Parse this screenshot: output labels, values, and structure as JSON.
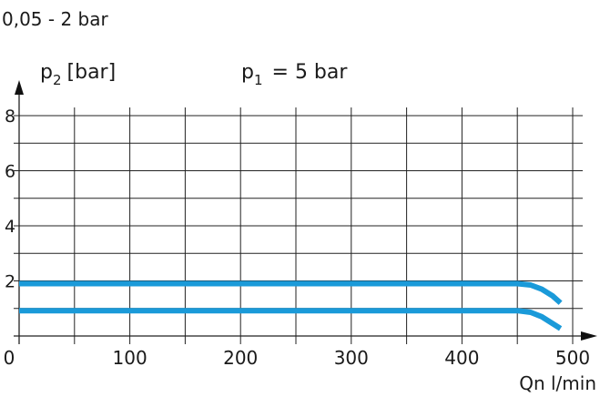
{
  "chart_data": {
    "type": "line",
    "title": "0,05 - 2 bar",
    "subtitle": "p1 = 5 bar",
    "subtitle_parts": {
      "p": "p",
      "sub": "1",
      "rest": "= 5 bar"
    },
    "ylabel": "p2 [bar]",
    "ylabel_parts": {
      "p": "p",
      "sub": "2",
      "rest": "[bar]"
    },
    "xlabel": "Qn l/min",
    "xlim": [
      0,
      500
    ],
    "ylim": [
      0,
      8
    ],
    "xticks": [
      0,
      100,
      200,
      300,
      400,
      500
    ],
    "yticks": [
      2,
      4,
      6,
      8
    ],
    "grid": true,
    "line_color": "#1a9ad9",
    "series": [
      {
        "x": [
          0,
          450,
          462,
          472,
          482,
          489
        ],
        "y": [
          1.9,
          1.9,
          1.85,
          1.7,
          1.45,
          1.2
        ]
      },
      {
        "x": [
          0,
          450,
          462,
          472,
          482,
          489
        ],
        "y": [
          0.92,
          0.92,
          0.86,
          0.7,
          0.45,
          0.27
        ]
      }
    ]
  }
}
